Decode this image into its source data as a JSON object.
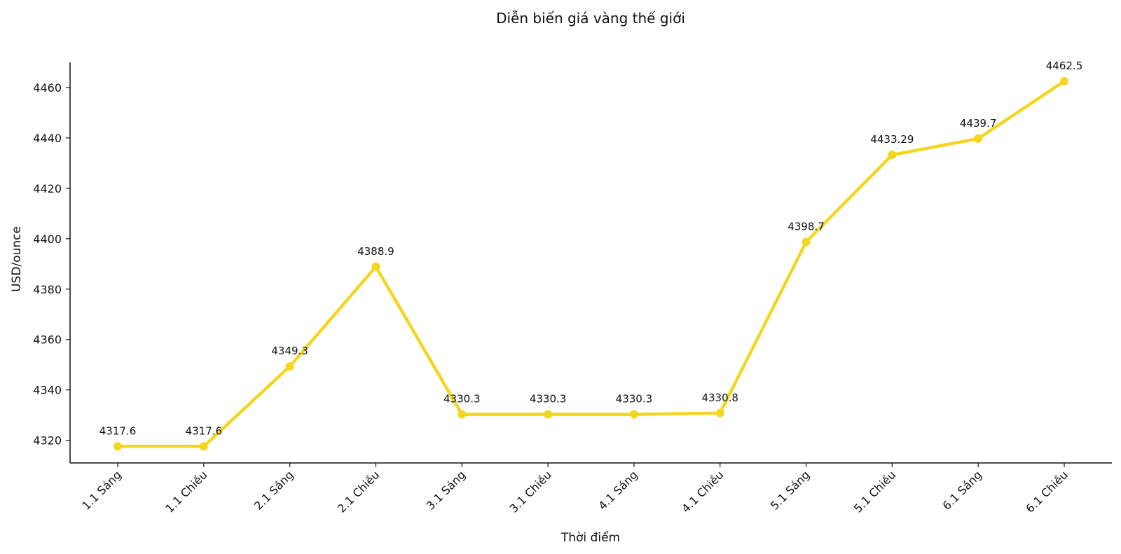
{
  "chart_data": {
    "type": "line",
    "title": "Diễn biến giá vàng thế giới",
    "xlabel": "Thời điểm",
    "ylabel": "USD/ounce",
    "categories": [
      "1.1 Sáng",
      "1.1 Chiều",
      "2.1 Sáng",
      "2.1 Chiều",
      "3.1 Sáng",
      "3.1 Chiều",
      "4.1 Sáng",
      "4.1 Chiều",
      "5.1 Sáng",
      "5.1 Chiều",
      "6.1 Sáng",
      "6.1 Chiều"
    ],
    "values": [
      4317.6,
      4317.6,
      4349.3,
      4388.9,
      4330.3,
      4330.3,
      4330.3,
      4330.8,
      4398.7,
      4433.29,
      4439.7,
      4462.5
    ],
    "data_labels": [
      "4317.6",
      "4317.6",
      "4349.3",
      "4388.9",
      "4330.3",
      "4330.3",
      "4330.3",
      "4330.8",
      "4398.7",
      "4433.29",
      "4439.7",
      "4462.5"
    ],
    "ylim": [
      4311,
      4470
    ],
    "yticks": [
      4320,
      4340,
      4360,
      4380,
      4400,
      4420,
      4440,
      4460
    ],
    "grid": false,
    "legend": "none",
    "line_color": "#f5d61e",
    "axis_color": "#111111"
  }
}
